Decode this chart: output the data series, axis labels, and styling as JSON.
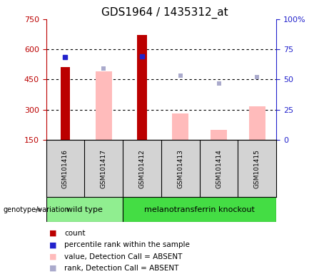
{
  "title": "GDS1964 / 1435312_at",
  "samples": [
    "GSM101416",
    "GSM101417",
    "GSM101412",
    "GSM101413",
    "GSM101414",
    "GSM101415"
  ],
  "count_values": [
    510,
    null,
    670,
    null,
    null,
    null
  ],
  "count_color": "#bb0000",
  "value_absent": [
    null,
    490,
    null,
    280,
    200,
    318
  ],
  "value_absent_color": "#ffbbbb",
  "rank_present_values": [
    560,
    null,
    565,
    null,
    null,
    null
  ],
  "rank_present_color": "#2222cc",
  "rank_absent_values": [
    null,
    503,
    null,
    468,
    430,
    463
  ],
  "rank_absent_color": "#aaaacc",
  "ylim_left": [
    150,
    750
  ],
  "ylim_right": [
    0,
    100
  ],
  "yticks_left": [
    150,
    300,
    450,
    600,
    750
  ],
  "yticks_right": [
    0,
    25,
    50,
    75,
    100
  ],
  "ytick_labels_right": [
    "0",
    "25",
    "50",
    "75",
    "100%"
  ],
  "grid_values": [
    300,
    450,
    600
  ],
  "group_colors": [
    "#90ee90",
    "#44dd44"
  ],
  "group_labels": [
    "wild type",
    "melanotransferrin knockout"
  ],
  "group_ranges": [
    [
      0,
      1
    ],
    [
      2,
      5
    ]
  ],
  "legend_items": [
    {
      "label": "count",
      "color": "#bb0000"
    },
    {
      "label": "percentile rank within the sample",
      "color": "#2222cc"
    },
    {
      "label": "value, Detection Call = ABSENT",
      "color": "#ffbbbb"
    },
    {
      "label": "rank, Detection Call = ABSENT",
      "color": "#aaaacc"
    }
  ],
  "title_fontsize": 11,
  "tick_fontsize": 8,
  "sample_fontsize": 6.5,
  "legend_fontsize": 7.5,
  "group_fontsize": 8
}
